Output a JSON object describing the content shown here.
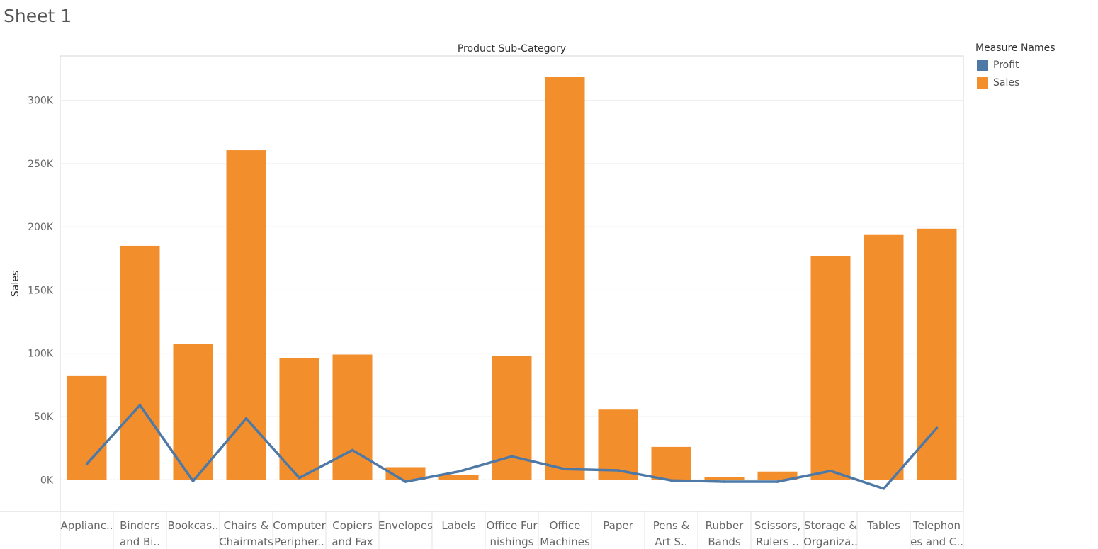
{
  "sheet": {
    "title": "Sheet 1"
  },
  "legend": {
    "title": "Measure Names",
    "items": [
      {
        "label": "Profit",
        "color": "#4e79a7"
      },
      {
        "label": "Sales",
        "color": "#f28e2b"
      }
    ]
  },
  "chart_data": {
    "type": "bar",
    "title": "Product Sub-Category",
    "xlabel": "",
    "ylabel": "Sales",
    "ylim": [
      -25000,
      335000
    ],
    "yticks": [
      0,
      50000,
      100000,
      150000,
      200000,
      250000,
      300000
    ],
    "ytick_labels": [
      "0K",
      "50K",
      "100K",
      "150K",
      "200K",
      "250K",
      "300K"
    ],
    "grid": true,
    "legend_position": "right",
    "categories": [
      [
        "Applianc.."
      ],
      [
        "Binders",
        "and Bi.."
      ],
      [
        "Bookcas.."
      ],
      [
        "Chairs &",
        "Chairmats"
      ],
      [
        "Computer",
        "Peripher.."
      ],
      [
        "Copiers",
        "and Fax"
      ],
      [
        "Envelopes"
      ],
      [
        "Labels"
      ],
      [
        "Office Fur",
        "nishings"
      ],
      [
        "Office",
        "Machines"
      ],
      [
        "Paper"
      ],
      [
        "Pens &",
        "Art S.."
      ],
      [
        "Rubber",
        "Bands"
      ],
      [
        "Scissors,",
        "Rulers .."
      ],
      [
        "Storage &",
        "Organiza.."
      ],
      [
        "Tables"
      ],
      [
        "Telephon",
        "es and C.."
      ]
    ],
    "series": [
      {
        "name": "Sales",
        "type": "bar",
        "color": "#f28e2b",
        "values": [
          82000,
          185000,
          107500,
          260500,
          96000,
          99000,
          10000,
          4000,
          98000,
          318500,
          55500,
          26000,
          2000,
          6500,
          177000,
          193500,
          198500
        ]
      },
      {
        "name": "Profit",
        "type": "line",
        "color": "#4e79a7",
        "values": [
          12500,
          59000,
          -1000,
          48500,
          1500,
          23500,
          -1500,
          6500,
          18500,
          8500,
          7500,
          -500,
          -1500,
          -1500,
          7000,
          -7000,
          41000
        ]
      }
    ]
  }
}
